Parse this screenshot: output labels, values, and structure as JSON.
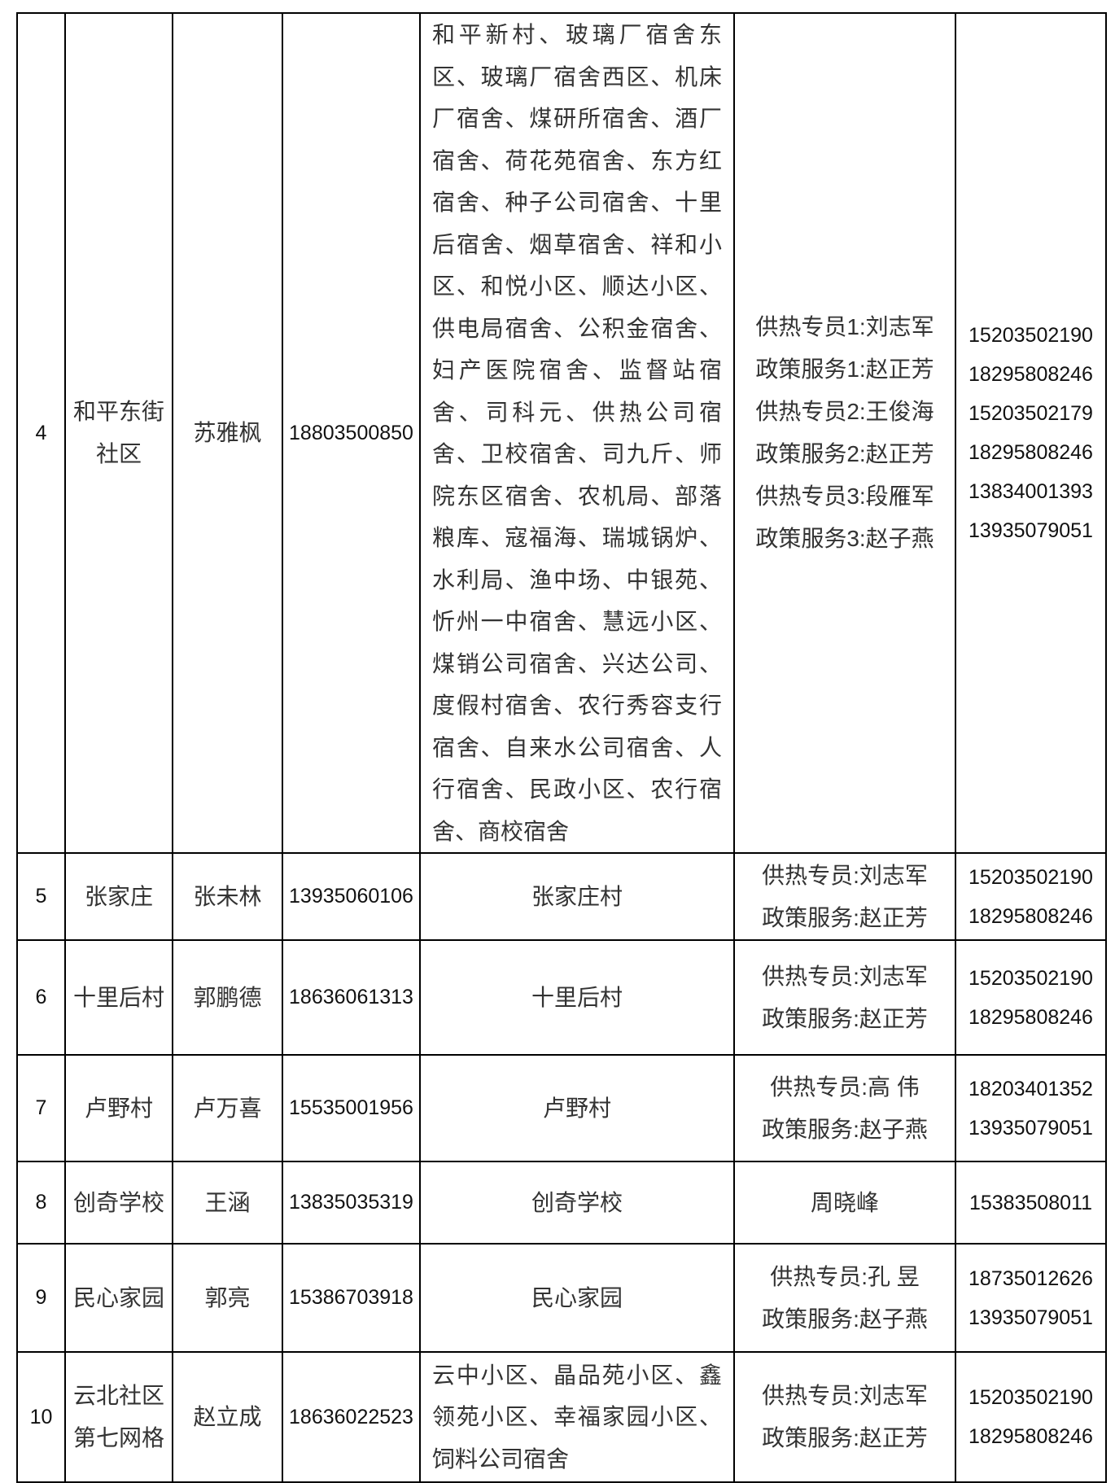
{
  "rows": [
    {
      "no": "4",
      "area": [
        "和平东街",
        "社区"
      ],
      "leader": "苏雅枫",
      "leader_phone": "18803500850",
      "scope": "和平新村、玻璃厂宿舍东区、玻璃厂宿舍西区、机床厂宿舍、煤研所宿舍、酒厂宿舍、荷花苑宿舍、东方红宿舍、种子公司宿舍、十里后宿舍、烟草宿舍、祥和小区、和悦小区、顺达小区、供电局宿舍、公积金宿舍、妇产医院宿舍、监督站宿舍、司科元、供热公司宿舍、卫校宿舍、司九斤、师院东区宿舍、农机局、部落粮库、寇福海、瑞城锅炉、水利局、渔中场、中银苑、忻州一中宿舍、慧远小区、煤销公司宿舍、兴达公司、度假村宿舍、农行秀容支行宿舍、自来水公司宿舍、人行宿舍、民政小区、农行宿舍、商校宿舍",
      "contacts": [
        "供热专员1:刘志军",
        "政策服务1:赵正芳",
        "供热专员2:王俊海",
        "政策服务2:赵正芳",
        "供热专员3:段雁军",
        "政策服务3:赵子燕"
      ],
      "phones": [
        "15203502190",
        "18295808246",
        "15203502179",
        "18295808246",
        "13834001393",
        "13935079051"
      ]
    },
    {
      "no": "5",
      "area": [
        "张家庄"
      ],
      "leader": "张未林",
      "leader_phone": "13935060106",
      "scope": "张家庄村",
      "contacts": [
        "供热专员:刘志军",
        "政策服务:赵正芳"
      ],
      "phones": [
        "15203502190",
        "18295808246"
      ]
    },
    {
      "no": "6",
      "area": [
        "十里后村"
      ],
      "leader": "郭鹏德",
      "leader_phone": "18636061313",
      "scope": "十里后村",
      "contacts": [
        "供热专员:刘志军",
        "政策服务:赵正芳"
      ],
      "phones": [
        "15203502190",
        "18295808246"
      ]
    },
    {
      "no": "7",
      "area": [
        "卢野村"
      ],
      "leader": "卢万喜",
      "leader_phone": "15535001956",
      "scope": "卢野村",
      "contacts": [
        "供热专员:高 伟",
        "政策服务:赵子燕"
      ],
      "phones": [
        "18203401352",
        "13935079051"
      ]
    },
    {
      "no": "8",
      "area": [
        "创奇学校"
      ],
      "leader": "王涵",
      "leader_phone": "13835035319",
      "scope": "创奇学校",
      "contacts": [
        "周晓峰"
      ],
      "phones": [
        "15383508011"
      ]
    },
    {
      "no": "9",
      "area": [
        "民心家园"
      ],
      "leader": "郭亮",
      "leader_phone": "15386703918",
      "scope": "民心家园",
      "contacts": [
        "供热专员:孔 昱",
        "政策服务:赵子燕"
      ],
      "phones": [
        "18735012626",
        "13935079051"
      ]
    },
    {
      "no": "10",
      "area": [
        "云北社区",
        "第七网格"
      ],
      "leader": "赵立成",
      "leader_phone": "18636022523",
      "scope": "云中小区、晶品苑小区、鑫领苑小区、幸福家园小区、饲料公司宿舍",
      "contacts": [
        "供热专员:刘志军",
        "政策服务:赵正芳"
      ],
      "phones": [
        "15203502190",
        "18295808246"
      ]
    }
  ]
}
